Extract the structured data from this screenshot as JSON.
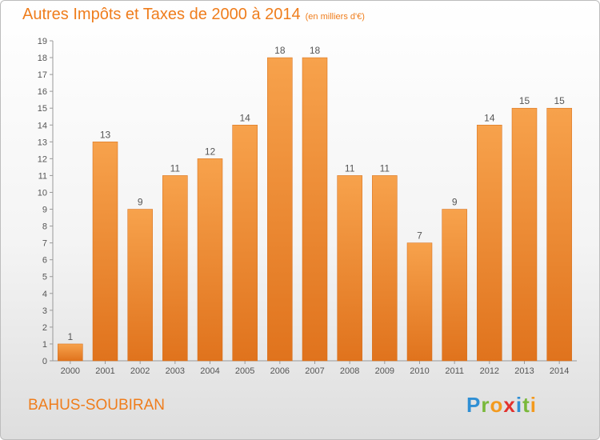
{
  "header": {
    "title": "Autres Impôts et Taxes de 2000 à 2014",
    "unit": "(en milliers d'€)"
  },
  "footer": {
    "commune": "BAHUS-SOUBIRAN",
    "logo": {
      "text": "Proxiti",
      "letters": [
        {
          "char": "P",
          "color": "#2f8fd4"
        },
        {
          "char": "r",
          "color": "#79b83a"
        },
        {
          "char": "o",
          "color": "#f39a1e"
        },
        {
          "char": "x",
          "color": "#e2312d"
        },
        {
          "char": "i",
          "color": "#2f8fd4"
        },
        {
          "char": "t",
          "color": "#79b83a"
        },
        {
          "char": "i",
          "color": "#f39a1e"
        }
      ]
    }
  },
  "chart_data": {
    "type": "bar",
    "categories": [
      "2000",
      "2001",
      "2002",
      "2003",
      "2004",
      "2005",
      "2006",
      "2007",
      "2008",
      "2009",
      "2010",
      "2011",
      "2012",
      "2013",
      "2014"
    ],
    "values": [
      1,
      13,
      9,
      11,
      12,
      14,
      18,
      18,
      11,
      11,
      7,
      9,
      14,
      15,
      15
    ],
    "title": "Autres Impôts et Taxes de 2000 à 2014",
    "xlabel": "",
    "ylabel": "",
    "ylim": [
      0,
      19
    ],
    "yticks": [
      0,
      1,
      2,
      3,
      4,
      5,
      6,
      7,
      8,
      9,
      10,
      11,
      12,
      13,
      14,
      15,
      16,
      17,
      18,
      19
    ],
    "grid": false,
    "bar_color": "#ef8a2c"
  }
}
